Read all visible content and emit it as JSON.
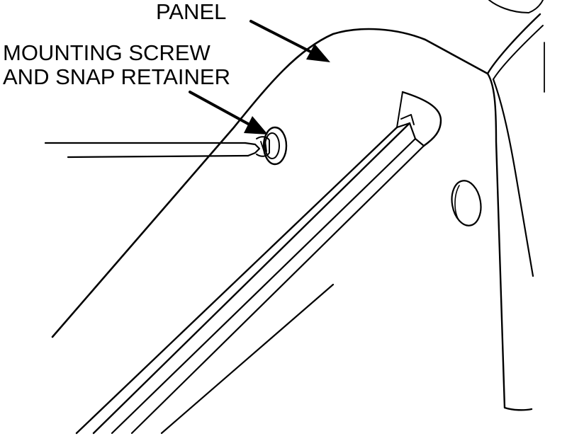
{
  "callouts": {
    "panel": "PANEL",
    "screw_line1": "MOUNTING SCREW",
    "screw_line2": "AND SNAP RETAINER"
  },
  "colors": {
    "ink": "#000000",
    "paper": "#ffffff"
  }
}
